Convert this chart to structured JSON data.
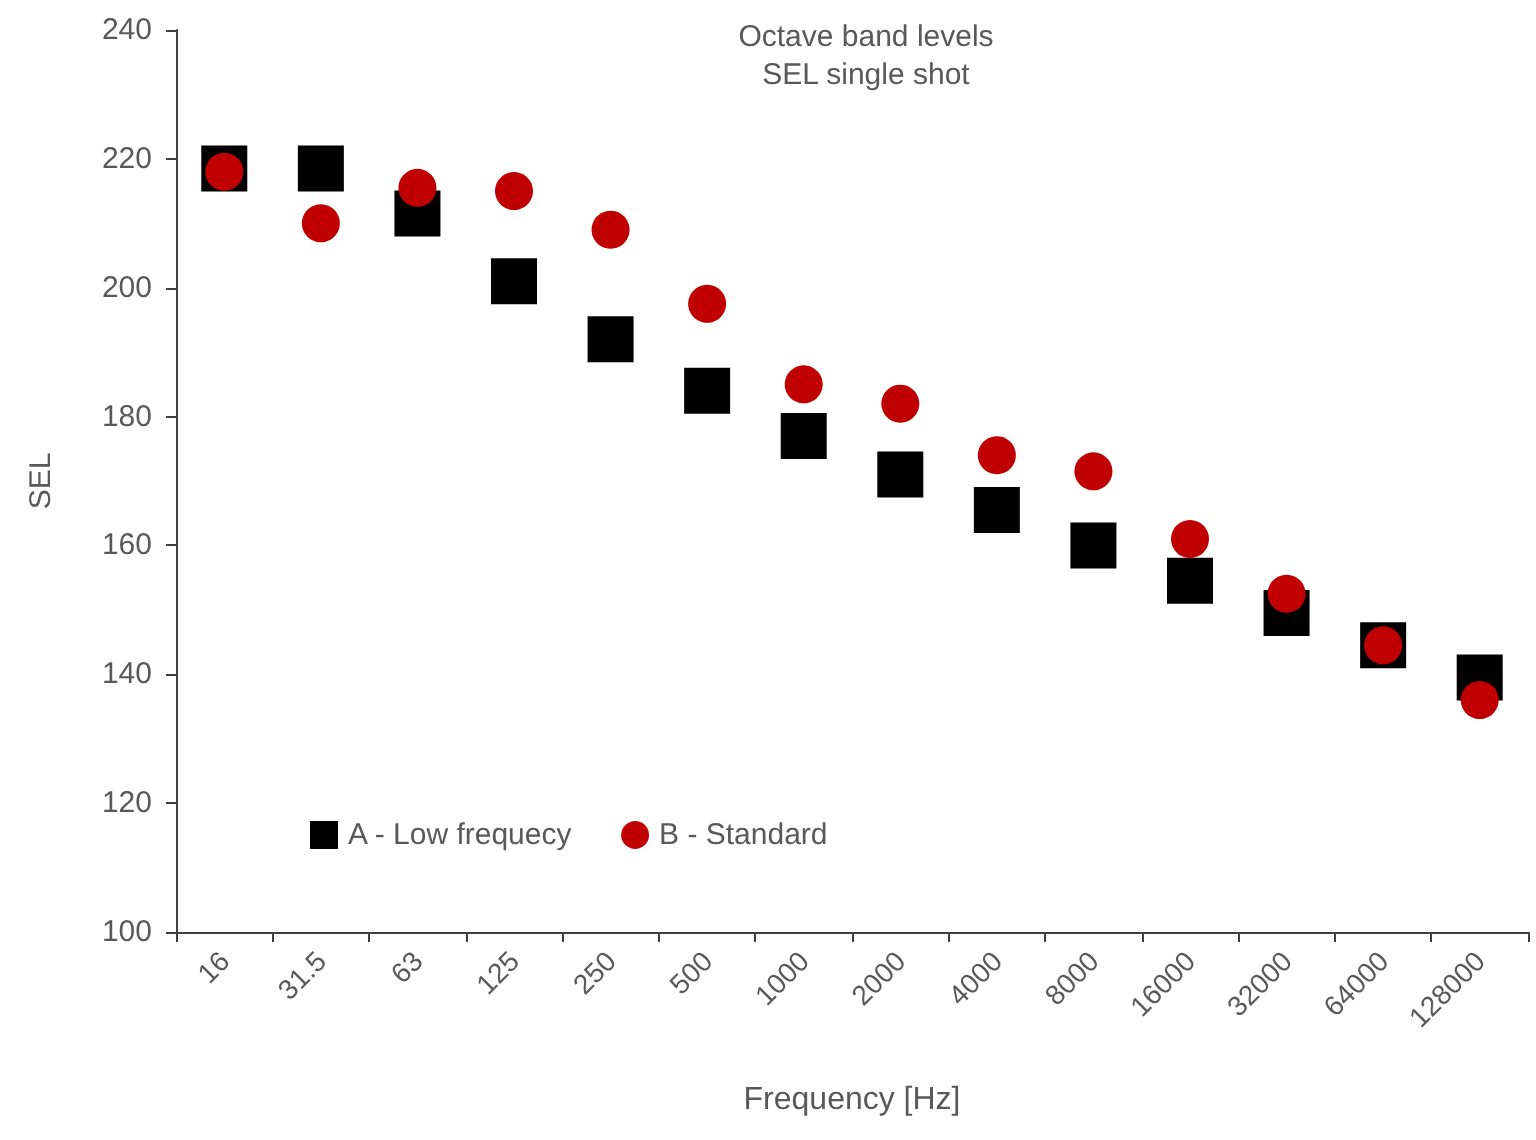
{
  "chart_data": {
    "type": "scatter",
    "title": "Octave band levels",
    "subtitle": "SEL single shot",
    "xlabel": "Frequency [Hz]",
    "ylabel": "SEL",
    "categories": [
      "16",
      "31.5",
      "63",
      "125",
      "250",
      "500",
      "1000",
      "2000",
      "4000",
      "8000",
      "16000",
      "32000",
      "64000",
      "128000"
    ],
    "series": [
      {
        "name": "A - Low frequecy",
        "color": "#000000",
        "marker": "square",
        "values": [
          218.5,
          218.5,
          211.5,
          201,
          192,
          184,
          177,
          171,
          165.5,
          160,
          154.5,
          149.5,
          144.5,
          139.5
        ]
      },
      {
        "name": "B - Standard",
        "color": "#c00000",
        "marker": "circle",
        "values": [
          218,
          210,
          215.5,
          215,
          209,
          197.5,
          185,
          182,
          174,
          171.5,
          161,
          152.5,
          144.5,
          136
        ]
      }
    ],
    "ylim": [
      100,
      240
    ],
    "yticks": [
      100,
      120,
      140,
      160,
      180,
      200,
      220,
      240
    ],
    "grid": false,
    "legend": "bottom left"
  }
}
